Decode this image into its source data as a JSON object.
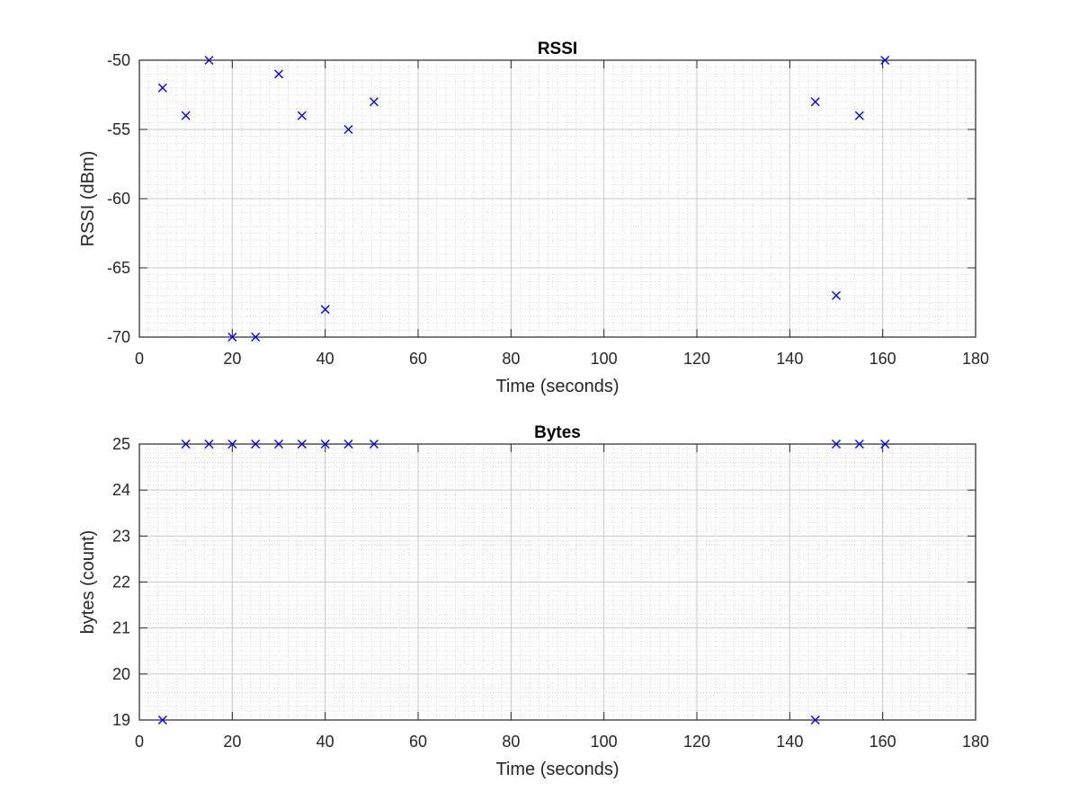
{
  "chart_data": [
    {
      "type": "scatter",
      "title": "RSSI",
      "xlabel": "Time (seconds)",
      "ylabel": "RSSI (dBm)",
      "xlim": [
        0,
        180
      ],
      "ylim": [
        -70,
        -50
      ],
      "xticks": [
        0,
        20,
        40,
        60,
        80,
        100,
        120,
        140,
        160,
        180
      ],
      "yticks": [
        -70,
        -65,
        -60,
        -55,
        -50
      ],
      "grid": true,
      "minor_grid": true,
      "marker": "x",
      "color": "#0000ff",
      "x": [
        5,
        10,
        15,
        20,
        25,
        30,
        35,
        40,
        45,
        50.5,
        145.5,
        150,
        155,
        160.5
      ],
      "y": [
        -52,
        -54,
        -50,
        -70,
        -70,
        -51,
        -54,
        -68,
        -55,
        -53,
        -53,
        -67,
        -54,
        -50
      ]
    },
    {
      "type": "scatter",
      "title": "Bytes",
      "xlabel": "Time (seconds)",
      "ylabel": "bytes (count)",
      "xlim": [
        0,
        180
      ],
      "ylim": [
        19,
        25
      ],
      "xticks": [
        0,
        20,
        40,
        60,
        80,
        100,
        120,
        140,
        160,
        180
      ],
      "yticks": [
        19,
        20,
        21,
        22,
        23,
        24,
        25
      ],
      "grid": true,
      "minor_grid": true,
      "marker": "x",
      "color": "#0000ff",
      "x": [
        5,
        10,
        15,
        20,
        25,
        30,
        35,
        40,
        45,
        50.5,
        145.5,
        150,
        155,
        160.5
      ],
      "y": [
        19,
        25,
        25,
        25,
        25,
        25,
        25,
        25,
        25,
        25,
        19,
        25,
        25,
        25
      ]
    }
  ]
}
